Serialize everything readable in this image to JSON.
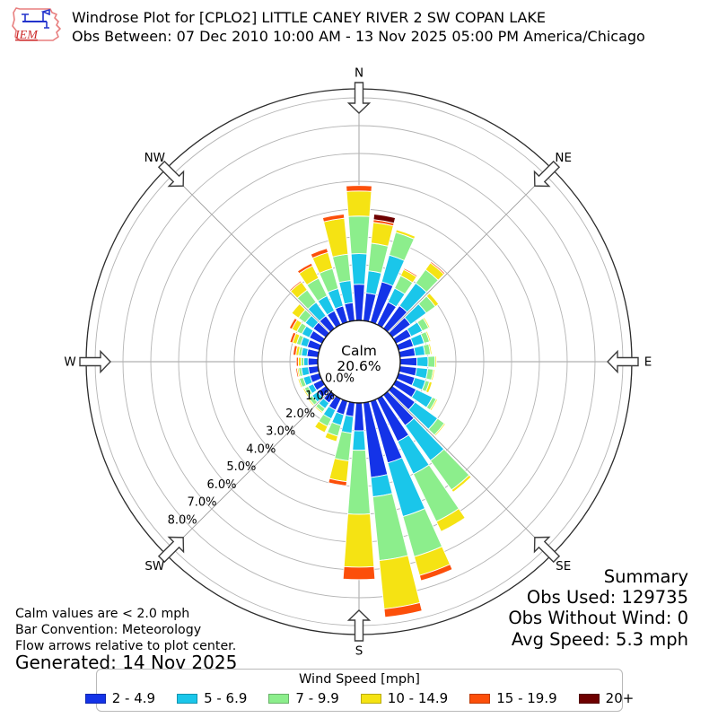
{
  "header": {
    "logo_text": "IEM",
    "title": "Windrose Plot for [CPLO2] LITTLE CANEY RIVER 2 SW COPAN LAKE",
    "subtitle": "Obs Between: 07 Dec 2010 10:00 AM - 13 Nov 2025 05:00 PM America/Chicago"
  },
  "summary": {
    "title": "Summary",
    "obs_used": "Obs Used: 129735",
    "obs_without_wind": "Obs Without Wind: 0",
    "avg_speed": "Avg Speed: 5.3 mph"
  },
  "annotations": {
    "calm_note": "Calm values are < 2.0 mph",
    "convention": "Bar Convention: Meteorology",
    "arrows_note": "Flow arrows relative to plot center.",
    "generated": "Generated: 14 Nov 2025"
  },
  "legend": {
    "title": "Wind Speed [mph]"
  },
  "chart_data": {
    "type": "windrose (stacked polar bar)",
    "center_label": "Calm",
    "calm_percent_label": "20.6%",
    "calm_percent": 20.6,
    "direction_labels": [
      "N",
      "NE",
      "E",
      "SE",
      "S",
      "SW",
      "W",
      "NW"
    ],
    "ring_percent_labels": [
      "0.0%",
      "1.0%",
      "2.0%",
      "3.0%",
      "4.0%",
      "5.0%",
      "6.0%",
      "7.0%",
      "8.0%"
    ],
    "ring_step_percent": 1.0,
    "ring_max_percent": 8.0,
    "grid": "on",
    "legend_position": "bottom",
    "speed_bins": [
      {
        "label": "2 - 4.9",
        "color": "#1433e8"
      },
      {
        "label": "5 - 6.9",
        "color": "#1ac6ea"
      },
      {
        "label": "7 - 9.9",
        "color": "#8cee8c"
      },
      {
        "label": "10 - 14.9",
        "color": "#f5e313"
      },
      {
        "label": "15 - 19.9",
        "color": "#fc4f0a"
      },
      {
        "label": "20+",
        "color": "#6e0000"
      }
    ],
    "directions_deg": [
      0,
      10,
      20,
      30,
      40,
      50,
      60,
      70,
      80,
      90,
      100,
      110,
      120,
      130,
      140,
      150,
      160,
      170,
      180,
      190,
      200,
      210,
      220,
      230,
      240,
      250,
      260,
      270,
      280,
      290,
      300,
      310,
      320,
      330,
      340,
      350
    ],
    "frequencies_percent": [
      [
        1.3,
        1.1,
        1.35,
        0.9,
        0.2,
        0.0
      ],
      [
        1.0,
        0.8,
        1.0,
        0.75,
        0.1,
        0.2
      ],
      [
        1.5,
        1.0,
        0.85,
        0.1,
        0.0,
        0.0
      ],
      [
        0.9,
        0.55,
        0.5,
        0.25,
        0.05,
        0.0
      ],
      [
        1.0,
        1.0,
        0.6,
        0.3,
        0.05,
        0.0
      ],
      [
        0.8,
        0.7,
        0.4,
        0.15,
        0.0,
        0.0
      ],
      [
        0.6,
        0.45,
        0.25,
        0.05,
        0.0,
        0.0
      ],
      [
        0.55,
        0.4,
        0.2,
        0.05,
        0.0,
        0.0
      ],
      [
        0.55,
        0.35,
        0.2,
        0.05,
        0.0,
        0.0
      ],
      [
        0.6,
        0.4,
        0.25,
        0.05,
        0.0,
        0.0
      ],
      [
        0.6,
        0.4,
        0.2,
        0.05,
        0.0,
        0.0
      ],
      [
        0.6,
        0.4,
        0.15,
        0.1,
        0.0,
        0.0
      ],
      [
        0.8,
        0.65,
        0.15,
        0.05,
        0.0,
        0.0
      ],
      [
        1.0,
        1.0,
        0.3,
        0.05,
        0.0,
        0.0
      ],
      [
        1.35,
        1.55,
        1.3,
        0.1,
        0.0,
        0.0
      ],
      [
        1.7,
        1.3,
        1.9,
        0.4,
        0.0,
        0.0
      ],
      [
        2.3,
        2.0,
        1.5,
        0.7,
        0.2,
        0.0
      ],
      [
        2.7,
        0.7,
        2.3,
        1.75,
        0.3,
        0.0
      ],
      [
        1.0,
        0.7,
        2.3,
        1.9,
        0.45,
        0.0
      ],
      [
        0.5,
        0.6,
        1.0,
        0.75,
        0.15,
        0.0
      ],
      [
        0.5,
        0.4,
        0.4,
        0.2,
        0.0,
        0.0
      ],
      [
        0.45,
        0.35,
        0.3,
        0.25,
        0.0,
        0.0
      ],
      [
        0.35,
        0.25,
        0.15,
        0.05,
        0.0,
        0.0
      ],
      [
        0.35,
        0.25,
        0.15,
        0.05,
        0.0,
        0.0
      ],
      [
        0.35,
        0.2,
        0.15,
        0.05,
        0.0,
        0.0
      ],
      [
        0.35,
        0.25,
        0.15,
        0.05,
        0.0,
        0.0
      ],
      [
        0.35,
        0.25,
        0.1,
        0.05,
        0.05,
        0.0
      ],
      [
        0.35,
        0.15,
        0.1,
        0.1,
        0.07,
        0.0
      ],
      [
        0.4,
        0.2,
        0.1,
        0.1,
        0.1,
        0.0
      ],
      [
        0.45,
        0.25,
        0.15,
        0.15,
        0.1,
        0.0
      ],
      [
        0.5,
        0.3,
        0.2,
        0.2,
        0.1,
        0.0
      ],
      [
        0.55,
        0.35,
        0.3,
        0.3,
        0.0,
        0.0
      ],
      [
        0.55,
        0.6,
        0.55,
        0.35,
        0.05,
        0.0
      ],
      [
        0.55,
        0.6,
        0.7,
        0.5,
        0.1,
        0.0
      ],
      [
        0.6,
        0.65,
        0.75,
        0.6,
        0.15,
        0.0
      ],
      [
        0.65,
        0.8,
        0.95,
        1.3,
        0.15,
        0.0
      ]
    ]
  }
}
